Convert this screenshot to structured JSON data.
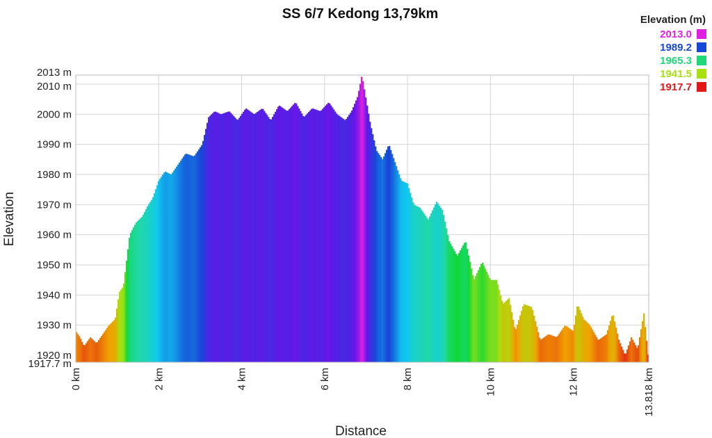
{
  "chart_data": {
    "type": "area",
    "title": "SS 6/7 Kedong 13,79km",
    "xlabel": "Distance",
    "ylabel": "Elevation",
    "xlim": [
      0,
      13.818
    ],
    "ylim": [
      1917.7,
      2013
    ],
    "grid": true,
    "x_ticks": [
      {
        "value": 0,
        "label": "0 km"
      },
      {
        "value": 2,
        "label": "2 km"
      },
      {
        "value": 4,
        "label": "4 km"
      },
      {
        "value": 6,
        "label": "6 km"
      },
      {
        "value": 8,
        "label": "8 km"
      },
      {
        "value": 10,
        "label": "10 km"
      },
      {
        "value": 12,
        "label": "12 km"
      },
      {
        "value": 13.818,
        "label": "13.818 km"
      }
    ],
    "y_ticks": [
      {
        "value": 1917.7,
        "label": "1917.7 m"
      },
      {
        "value": 1920,
        "label": "1920 m"
      },
      {
        "value": 1930,
        "label": "1930 m"
      },
      {
        "value": 1940,
        "label": "1940 m"
      },
      {
        "value": 1950,
        "label": "1950 m"
      },
      {
        "value": 1960,
        "label": "1960 m"
      },
      {
        "value": 1970,
        "label": "1970 m"
      },
      {
        "value": 1980,
        "label": "1980 m"
      },
      {
        "value": 1990,
        "label": "1990 m"
      },
      {
        "value": 2000,
        "label": "2000 m"
      },
      {
        "value": 2010,
        "label": "2010 m"
      },
      {
        "value": 2013,
        "label": "2013 m"
      }
    ],
    "legend": {
      "title": "Elevation (m)",
      "position": "top-right",
      "entries": [
        {
          "label": "2013.0",
          "color": "#e020e0"
        },
        {
          "label": "1989.2",
          "color": "#1848d8"
        },
        {
          "label": "1965.3",
          "color": "#20d878"
        },
        {
          "label": "1941.5",
          "color": "#a8e010"
        },
        {
          "label": "1917.7",
          "color": "#e01818"
        }
      ]
    },
    "color_scale": [
      {
        "elevation": 1917.7,
        "color": "#e01818"
      },
      {
        "elevation": 1930.0,
        "color": "#f0a000"
      },
      {
        "elevation": 1941.5,
        "color": "#a8e010"
      },
      {
        "elevation": 1953.0,
        "color": "#10d838"
      },
      {
        "elevation": 1965.3,
        "color": "#20d8a8"
      },
      {
        "elevation": 1977.0,
        "color": "#10c8f0"
      },
      {
        "elevation": 1989.2,
        "color": "#1848d8"
      },
      {
        "elevation": 2003.0,
        "color": "#6018e8"
      },
      {
        "elevation": 2013.0,
        "color": "#e020e0"
      }
    ],
    "series": [
      {
        "x": [
          0,
          0.1,
          0.2,
          0.35,
          0.5,
          0.65,
          0.8,
          0.95,
          1.05,
          1.15,
          1.3,
          1.45,
          1.6,
          1.75,
          1.85,
          2.0,
          2.15,
          2.3,
          2.45,
          2.65,
          2.85,
          3.05,
          3.2,
          3.35,
          3.5,
          3.7,
          3.9,
          4.1,
          4.3,
          4.5,
          4.7,
          4.9,
          5.1,
          5.3,
          5.5,
          5.7,
          5.9,
          6.1,
          6.3,
          6.5,
          6.65,
          6.8,
          6.9,
          7.0,
          7.1,
          7.25,
          7.4,
          7.55,
          7.7,
          7.85,
          8.0,
          8.15,
          8.3,
          8.5,
          8.7,
          8.85,
          9.0,
          9.2,
          9.4,
          9.6,
          9.8,
          10.0,
          10.15,
          10.3,
          10.45,
          10.6,
          10.8,
          11.0,
          11.2,
          11.4,
          11.6,
          11.8,
          12.0,
          12.1,
          12.25,
          12.4,
          12.6,
          12.8,
          12.95,
          13.1,
          13.25,
          13.4,
          13.55,
          13.7,
          13.818
        ],
        "y": [
          1928,
          1926,
          1923,
          1926,
          1924,
          1927,
          1930,
          1932,
          1941,
          1943,
          1960,
          1964,
          1966,
          1970,
          1972,
          1978,
          1981,
          1980,
          1983,
          1987,
          1986,
          1990,
          1999,
          2001,
          2000,
          2001,
          1998,
          2002,
          2000,
          2002,
          1998,
          2003,
          2001,
          2004,
          1999,
          2002,
          2001,
          2004,
          2000,
          1998,
          2001,
          2006,
          2013,
          2005,
          1997,
          1988,
          1985,
          1990,
          1984,
          1978,
          1977,
          1970,
          1969,
          1965,
          1971,
          1968,
          1958,
          1953,
          1958,
          1945,
          1951,
          1945,
          1945,
          1937,
          1939,
          1928,
          1937,
          1936,
          1925,
          1927,
          1926,
          1930,
          1928,
          1937,
          1932,
          1930,
          1925,
          1927,
          1934,
          1925,
          1920,
          1926,
          1922,
          1934,
          1918
        ]
      }
    ]
  }
}
